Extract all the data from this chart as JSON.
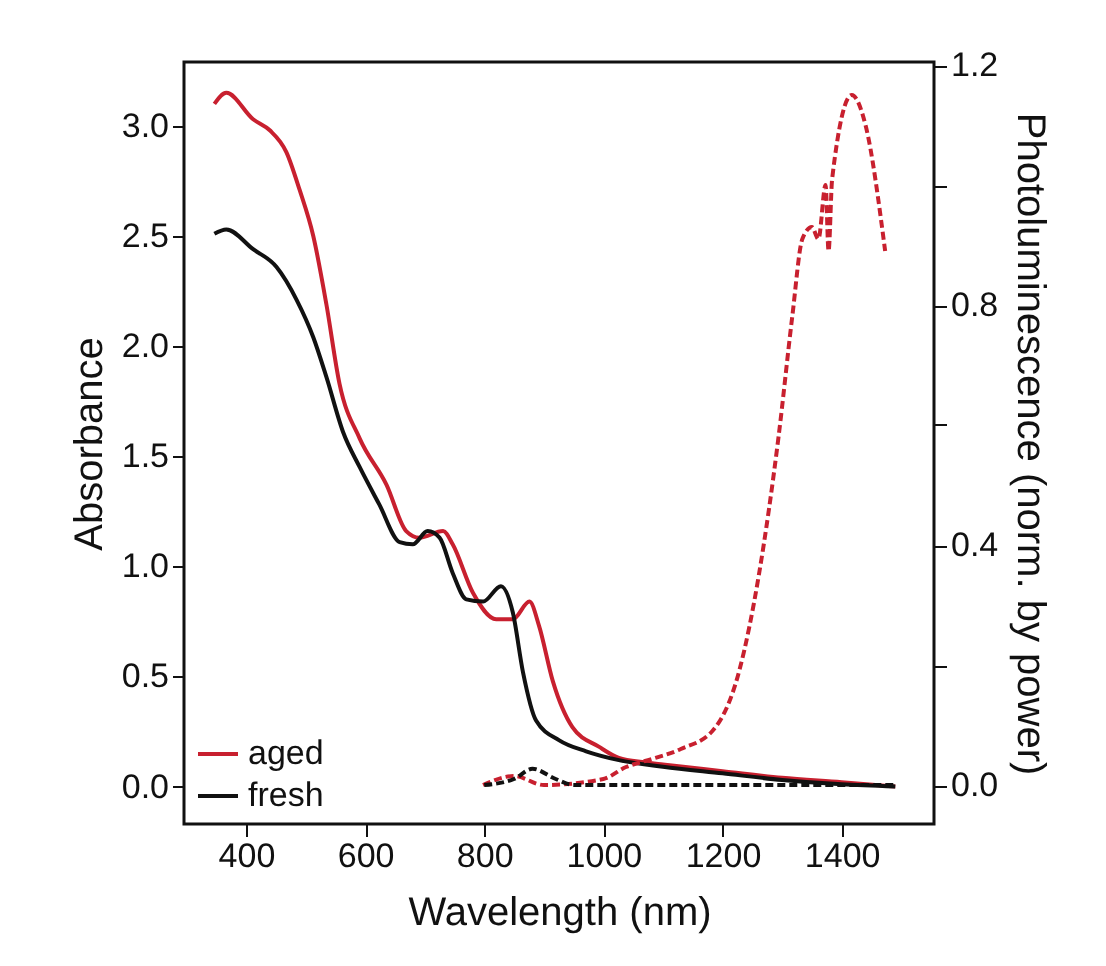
{
  "chart_data": {
    "type": "line",
    "xlabel": "Wavelength (nm)",
    "ylabel": "Absorbance",
    "y2label": "Photoluminescence (norm. by power)",
    "xlim": [
      296,
      1555
    ],
    "ylim": [
      -0.17,
      3.29
    ],
    "y2lim": [
      -0.065,
      1.205
    ],
    "xticks": [
      400,
      600,
      800,
      1000,
      1200,
      1400
    ],
    "yticks": [
      {
        "value": 0,
        "label": "0.0"
      },
      {
        "value": 0.5,
        "label": "0.5"
      },
      {
        "value": 1,
        "label": "1.0"
      },
      {
        "value": 1.5,
        "label": "1.5"
      },
      {
        "value": 2,
        "label": "2.0"
      },
      {
        "value": 2.5,
        "label": "2.5"
      },
      {
        "value": 3,
        "label": "3.0"
      }
    ],
    "y2ticks": [
      {
        "value": 0,
        "label": "0.0"
      },
      {
        "value": 0.2,
        "label": null
      },
      {
        "value": 0.4,
        "label": "0.4"
      },
      {
        "value": 0.6,
        "label": null
      },
      {
        "value": 0.8,
        "label": "0.8"
      },
      {
        "value": 1.0,
        "label": null
      },
      {
        "value": 1.2,
        "label": "1.2"
      }
    ],
    "legend": "bottom left",
    "series": [
      {
        "name": "aged",
        "color": "#c8202f",
        "line_style": "solid",
        "x": [
          347,
          367,
          412,
          440,
          468,
          490,
          513,
          535,
          557,
          591,
          636,
          669,
          691,
          731,
          747,
          781,
          820,
          848,
          876,
          892,
          915,
          948,
          993,
          1026,
          1070,
          1100,
          1200,
          1300,
          1400,
          1490
        ],
        "values": [
          3.1,
          3.15,
          3.03,
          2.98,
          2.88,
          2.71,
          2.5,
          2.19,
          1.83,
          1.58,
          1.37,
          1.16,
          1.13,
          1.16,
          1.1,
          0.88,
          0.76,
          0.76,
          0.84,
          0.73,
          0.48,
          0.27,
          0.18,
          0.13,
          0.11,
          0.1,
          0.07,
          0.04,
          0.02,
          0.0
        ]
      },
      {
        "name": "fresh",
        "color": "#111111",
        "line_style": "solid",
        "x": [
          347,
          367,
          412,
          451,
          485,
          513,
          535,
          563,
          591,
          624,
          658,
          680,
          705,
          725,
          747,
          770,
          798,
          828,
          848,
          865,
          887,
          926,
          971,
          1026,
          1100,
          1200,
          1300,
          1400,
          1490
        ],
        "values": [
          2.51,
          2.53,
          2.44,
          2.36,
          2.21,
          2.04,
          1.86,
          1.61,
          1.45,
          1.28,
          1.11,
          1.1,
          1.16,
          1.13,
          0.97,
          0.85,
          0.84,
          0.91,
          0.79,
          0.52,
          0.3,
          0.21,
          0.16,
          0.12,
          0.09,
          0.06,
          0.03,
          0.01,
          0.0
        ]
      },
      {
        "color": "#c8202f",
        "line_style": "dashed",
        "axis": "y2",
        "x": [
          798,
          850,
          900,
          1000,
          1038,
          1070,
          1130,
          1183,
          1228,
          1261,
          1294,
          1317,
          1334,
          1350,
          1361,
          1373,
          1378,
          1384,
          1417,
          1440,
          1473
        ],
        "values": [
          0.0,
          0.015,
          0.0,
          0.01,
          0.03,
          0.04,
          0.06,
          0.09,
          0.19,
          0.35,
          0.58,
          0.78,
          0.91,
          0.93,
          0.91,
          1.0,
          0.89,
          1.01,
          1.15,
          1.1,
          0.89
        ]
      },
      {
        "color": "#111111",
        "line_style": "dashed",
        "axis": "y2",
        "x": [
          800,
          850,
          881,
          920,
          950,
          1000,
          1100,
          1200,
          1300,
          1400,
          1490
        ],
        "values": [
          0.0,
          0.01,
          0.027,
          0.01,
          0.0,
          0.0,
          0.0,
          0.0,
          0.0,
          0.0,
          0.0
        ]
      }
    ]
  }
}
